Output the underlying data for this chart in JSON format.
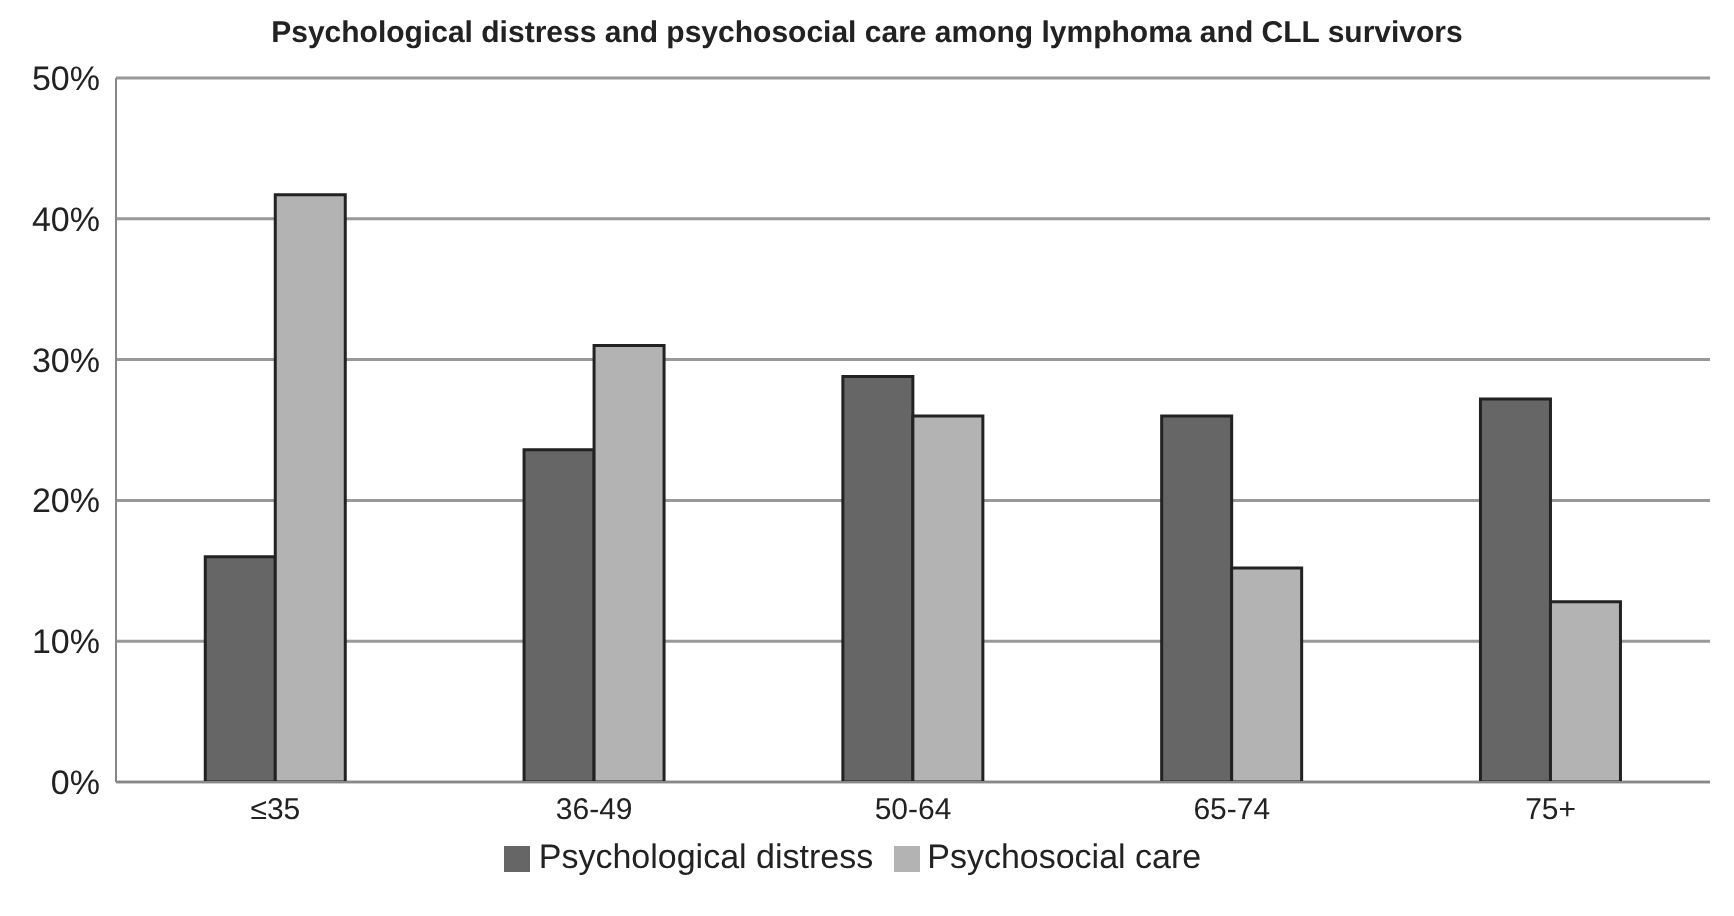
{
  "chart_data": {
    "type": "bar",
    "title": "Psychological distress and psychosocial care among lymphoma and CLL survivors",
    "categories": [
      "≤35",
      "36-49",
      "50-64",
      "65-74",
      "75+"
    ],
    "series": [
      {
        "name": "Psychological distress",
        "color": "#666666",
        "values": [
          16,
          23.6,
          28.8,
          26,
          27.2
        ]
      },
      {
        "name": "Psychosocial care",
        "color": "#b3b3b3",
        "values": [
          41.7,
          31,
          26,
          15.2,
          12.8
        ]
      }
    ],
    "ylim": [
      0,
      50
    ],
    "yticks": [
      {
        "value": 0,
        "label": "0%"
      },
      {
        "value": 10,
        "label": "10%"
      },
      {
        "value": 20,
        "label": "20%"
      },
      {
        "value": 30,
        "label": "30%"
      },
      {
        "value": 40,
        "label": "40%"
      },
      {
        "value": 50,
        "label": "50%"
      }
    ],
    "grid": "y",
    "legend": "bottom"
  }
}
